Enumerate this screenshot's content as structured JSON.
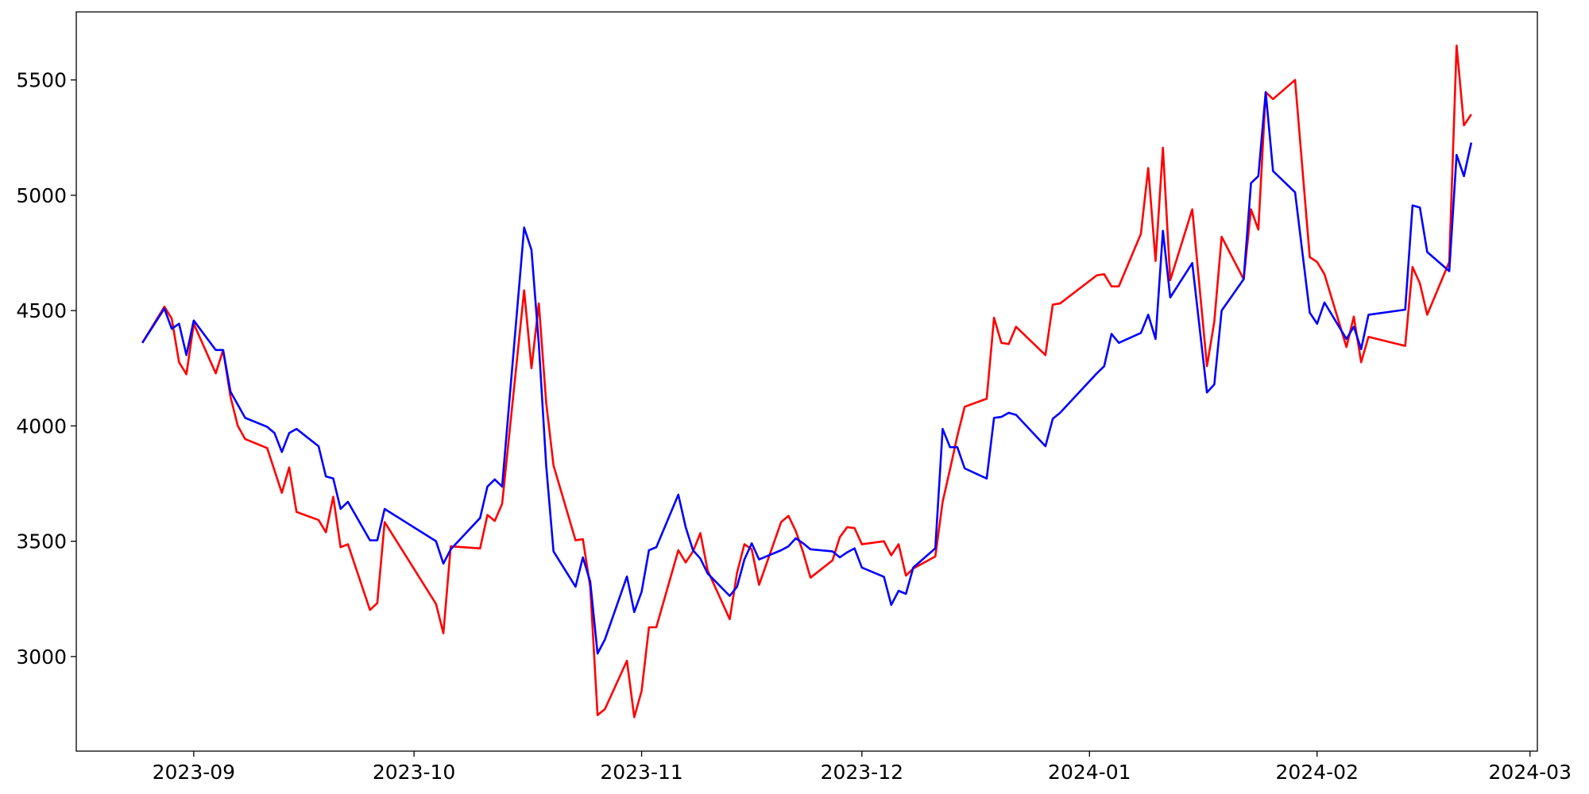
{
  "chart_data": {
    "type": "line",
    "x": [
      "2023-08-25",
      "2023-08-28",
      "2023-08-29",
      "2023-08-30",
      "2023-08-31",
      "2023-09-01",
      "2023-09-04",
      "2023-09-05",
      "2023-09-06",
      "2023-09-07",
      "2023-09-08",
      "2023-09-11",
      "2023-09-12",
      "2023-09-13",
      "2023-09-14",
      "2023-09-15",
      "2023-09-18",
      "2023-09-19",
      "2023-09-20",
      "2023-09-21",
      "2023-09-22",
      "2023-09-25",
      "2023-09-26",
      "2023-09-27",
      "2023-10-04",
      "2023-10-05",
      "2023-10-06",
      "2023-10-10",
      "2023-10-11",
      "2023-10-12",
      "2023-10-13",
      "2023-10-16",
      "2023-10-17",
      "2023-10-18",
      "2023-10-19",
      "2023-10-20",
      "2023-10-23",
      "2023-10-24",
      "2023-10-25",
      "2023-10-26",
      "2023-10-27",
      "2023-10-30",
      "2023-10-31",
      "2023-11-01",
      "2023-11-02",
      "2023-11-03",
      "2023-11-06",
      "2023-11-07",
      "2023-11-08",
      "2023-11-09",
      "2023-11-10",
      "2023-11-13",
      "2023-11-14",
      "2023-11-15",
      "2023-11-16",
      "2023-11-17",
      "2023-11-20",
      "2023-11-21",
      "2023-11-22",
      "2023-11-23",
      "2023-11-24",
      "2023-11-27",
      "2023-11-28",
      "2023-11-29",
      "2023-11-30",
      "2023-12-01",
      "2023-12-04",
      "2023-12-05",
      "2023-12-06",
      "2023-12-07",
      "2023-12-08",
      "2023-12-11",
      "2023-12-12",
      "2023-12-13",
      "2023-12-14",
      "2023-12-15",
      "2023-12-18",
      "2023-12-19",
      "2023-12-20",
      "2023-12-21",
      "2023-12-22",
      "2023-12-26",
      "2023-12-27",
      "2023-12-28",
      "2024-01-02",
      "2024-01-03",
      "2024-01-04",
      "2024-01-05",
      "2024-01-08",
      "2024-01-09",
      "2024-01-10",
      "2024-01-11",
      "2024-01-12",
      "2024-01-15",
      "2024-01-17",
      "2024-01-18",
      "2024-01-19",
      "2024-01-22",
      "2024-01-23",
      "2024-01-24",
      "2024-01-25",
      "2024-01-26",
      "2024-01-29",
      "2024-01-31",
      "2024-02-01",
      "2024-02-02",
      "2024-02-05",
      "2024-02-06",
      "2024-02-07",
      "2024-02-08",
      "2024-02-13",
      "2024-02-14",
      "2024-02-15",
      "2024-02-16",
      "2024-02-19",
      "2024-02-20",
      "2024-02-21",
      "2024-02-22"
    ],
    "series": [
      {
        "color": "#ff0000",
        "values": [
          4360,
          4517,
          4465,
          4276,
          4224,
          4443,
          4228,
          4329,
          4127,
          4000,
          3943,
          3904,
          3807,
          3710,
          3820,
          3627,
          3592,
          3539,
          3693,
          3474,
          3487,
          3202,
          3232,
          3583,
          3228,
          3101,
          3478,
          3469,
          3614,
          3588,
          3662,
          4588,
          4250,
          4531,
          4101,
          3829,
          3504,
          3509,
          3303,
          2746,
          2772,
          2982,
          2737,
          2851,
          3127,
          3127,
          3461,
          3408,
          3456,
          3535,
          3373,
          3162,
          3364,
          3487,
          3465,
          3311,
          3583,
          3610,
          3544,
          3452,
          3342,
          3417,
          3518,
          3561,
          3557,
          3487,
          3500,
          3439,
          3487,
          3351,
          3382,
          3434,
          3671,
          3811,
          3956,
          4083,
          4118,
          4469,
          4360,
          4355,
          4430,
          4307,
          4526,
          4531,
          4653,
          4658,
          4605,
          4605,
          4833,
          5118,
          4715,
          5206,
          4632,
          4939,
          4259,
          4452,
          4820,
          4636,
          4939,
          4851,
          5447,
          5417,
          5500,
          4732,
          4711,
          4658,
          4342,
          4474,
          4276,
          4386,
          4347,
          4689,
          4618,
          4482,
          4711,
          5649,
          5303,
          5351
        ]
      },
      {
        "color": "#0000ff",
        "values": [
          4360,
          4509,
          4421,
          4443,
          4307,
          4457,
          4329,
          4329,
          4149,
          4092,
          4035,
          3996,
          3969,
          3887,
          3969,
          3987,
          3912,
          3781,
          3772,
          3640,
          3671,
          3504,
          3504,
          3640,
          3500,
          3403,
          3465,
          3601,
          3737,
          3768,
          3737,
          4860,
          4763,
          4355,
          3829,
          3456,
          3303,
          3430,
          3325,
          3013,
          3074,
          3347,
          3193,
          3281,
          3461,
          3474,
          3702,
          3561,
          3461,
          3425,
          3360,
          3263,
          3303,
          3421,
          3491,
          3421,
          3461,
          3478,
          3513,
          3491,
          3465,
          3456,
          3430,
          3452,
          3469,
          3386,
          3346,
          3224,
          3285,
          3272,
          3386,
          3469,
          3987,
          3908,
          3908,
          3816,
          3772,
          4035,
          4039,
          4057,
          4048,
          3912,
          4031,
          4057,
          4228,
          4259,
          4399,
          4360,
          4403,
          4482,
          4377,
          4846,
          4557,
          4706,
          4145,
          4180,
          4500,
          4636,
          5053,
          5083,
          5447,
          5105,
          5013,
          4491,
          4443,
          4535,
          4377,
          4430,
          4333,
          4482,
          4504,
          4956,
          4947,
          4754,
          4671,
          5175,
          5083,
          5228
        ]
      }
    ],
    "xlim": [
      "2023-08-16",
      "2024-03-02"
    ],
    "xticks": [
      {
        "value": "2023-09-01",
        "label": "2023-09"
      },
      {
        "value": "2023-10-01",
        "label": "2023-10"
      },
      {
        "value": "2023-11-01",
        "label": "2023-11"
      },
      {
        "value": "2023-12-01",
        "label": "2023-12"
      },
      {
        "value": "2024-01-01",
        "label": "2024-01"
      },
      {
        "value": "2024-02-01",
        "label": "2024-02"
      },
      {
        "value": "2024-03-01",
        "label": "2024-03"
      }
    ],
    "ylim": [
      2590,
      5795
    ],
    "yticks": [
      3000,
      3500,
      4000,
      4500,
      5000,
      5500
    ],
    "grid": false
  }
}
